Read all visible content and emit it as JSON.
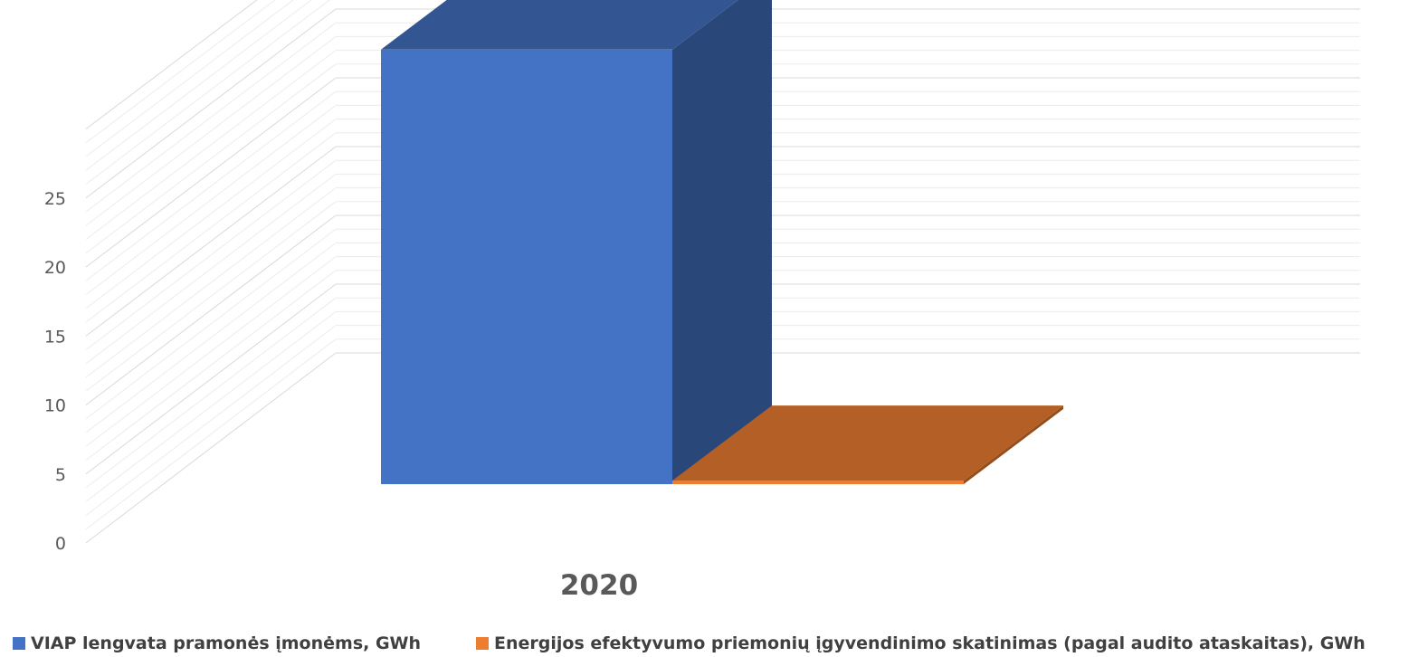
{
  "chart_data": {
    "type": "bar",
    "categories": [
      "2020"
    ],
    "series": [
      {
        "name": "VIAP lengvata pramonės įmonėms, GWh",
        "values": [
          24.5
        ],
        "color": "#4472C4"
      },
      {
        "name": "Energijos efektyvumo priemonių įgyvendinimo skatinimas (pagal audito ataskaitas), GWh",
        "values": [
          0.2
        ],
        "color": "#ED7D31"
      }
    ],
    "y_ticks": [
      "0",
      "5",
      "10",
      "15",
      "20",
      "25"
    ],
    "ylim": [
      0,
      30
    ],
    "grid": true,
    "legend_position": "bottom",
    "title": "",
    "xlabel": "",
    "ylabel": ""
  }
}
